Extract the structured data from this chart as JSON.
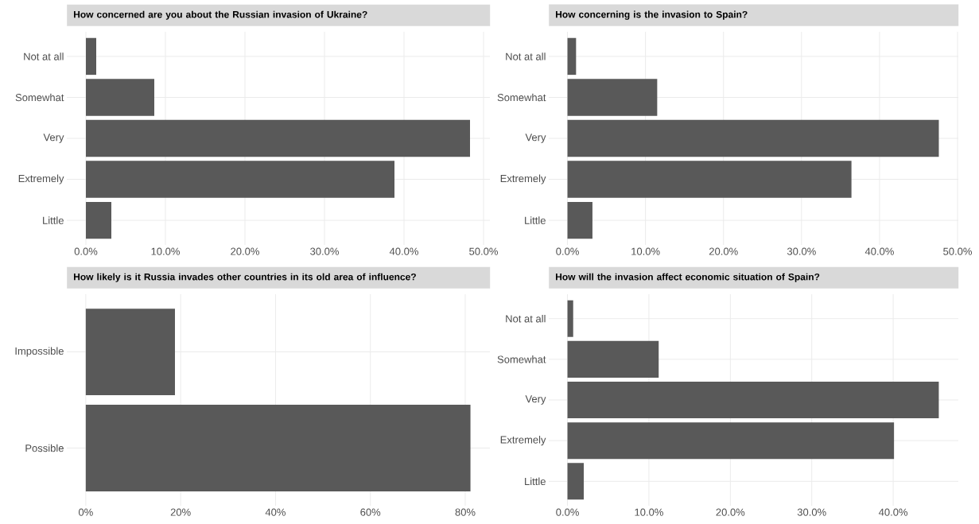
{
  "chart_data": [
    {
      "type": "bar",
      "orientation": "horizontal",
      "title": "How concerned are you about the Russian invasion of Ukraine?",
      "categories": [
        "Not at all",
        "Somewhat",
        "Very",
        "Extremely",
        "Little"
      ],
      "values": [
        1.3,
        8.6,
        48.3,
        38.8,
        3.2
      ],
      "color": "#595959",
      "xlim": [
        -2.4,
        50.8
      ],
      "xticks": [
        {
          "value": 0,
          "label": "0.0%"
        },
        {
          "value": 10,
          "label": "10.0%"
        },
        {
          "value": 20,
          "label": "20.0%"
        },
        {
          "value": 30,
          "label": "30.0%"
        },
        {
          "value": 40,
          "label": "40.0%"
        },
        {
          "value": 50,
          "label": "50.0%"
        }
      ],
      "grid": true
    },
    {
      "type": "bar",
      "orientation": "horizontal",
      "title": "How concerning is the invasion to Spain?",
      "categories": [
        "Not at all",
        "Somewhat",
        "Very",
        "Extremely",
        "Little"
      ],
      "values": [
        1.1,
        11.5,
        47.6,
        36.4,
        3.2
      ],
      "color": "#595959",
      "xlim": [
        -2.4,
        50.1
      ],
      "xticks": [
        {
          "value": 0,
          "label": "0.0%"
        },
        {
          "value": 10,
          "label": "10.0%"
        },
        {
          "value": 20,
          "label": "20.0%"
        },
        {
          "value": 30,
          "label": "30.0%"
        },
        {
          "value": 40,
          "label": "40.0%"
        },
        {
          "value": 50,
          "label": "50.0%"
        }
      ],
      "grid": true
    },
    {
      "type": "bar",
      "orientation": "horizontal",
      "title": "How likely is it Russia invades other countries in its old area of influence?",
      "categories": [
        "Impossible",
        "Possible"
      ],
      "values": [
        18.8,
        81.1
      ],
      "color": "#595959",
      "xlim": [
        -4.0,
        85.2
      ],
      "xticks": [
        {
          "value": 0,
          "label": "0%"
        },
        {
          "value": 20,
          "label": "20%"
        },
        {
          "value": 40,
          "label": "40%"
        },
        {
          "value": 60,
          "label": "60%"
        },
        {
          "value": 80,
          "label": "80%"
        }
      ],
      "grid": true
    },
    {
      "type": "bar",
      "orientation": "horizontal",
      "title": "How will the invasion affect economic situation of Spain?",
      "categories": [
        "Not at all",
        "Somewhat",
        "Very",
        "Extremely",
        "Little"
      ],
      "values": [
        0.7,
        11.2,
        45.6,
        40.1,
        2.0
      ],
      "color": "#595959",
      "xlim": [
        -2.3,
        48.0
      ],
      "xticks": [
        {
          "value": 0,
          "label": "0.0%"
        },
        {
          "value": 10,
          "label": "10.0%"
        },
        {
          "value": 20,
          "label": "20.0%"
        },
        {
          "value": 30,
          "label": "30.0%"
        },
        {
          "value": 40,
          "label": "40.0%"
        }
      ],
      "grid": true
    }
  ]
}
